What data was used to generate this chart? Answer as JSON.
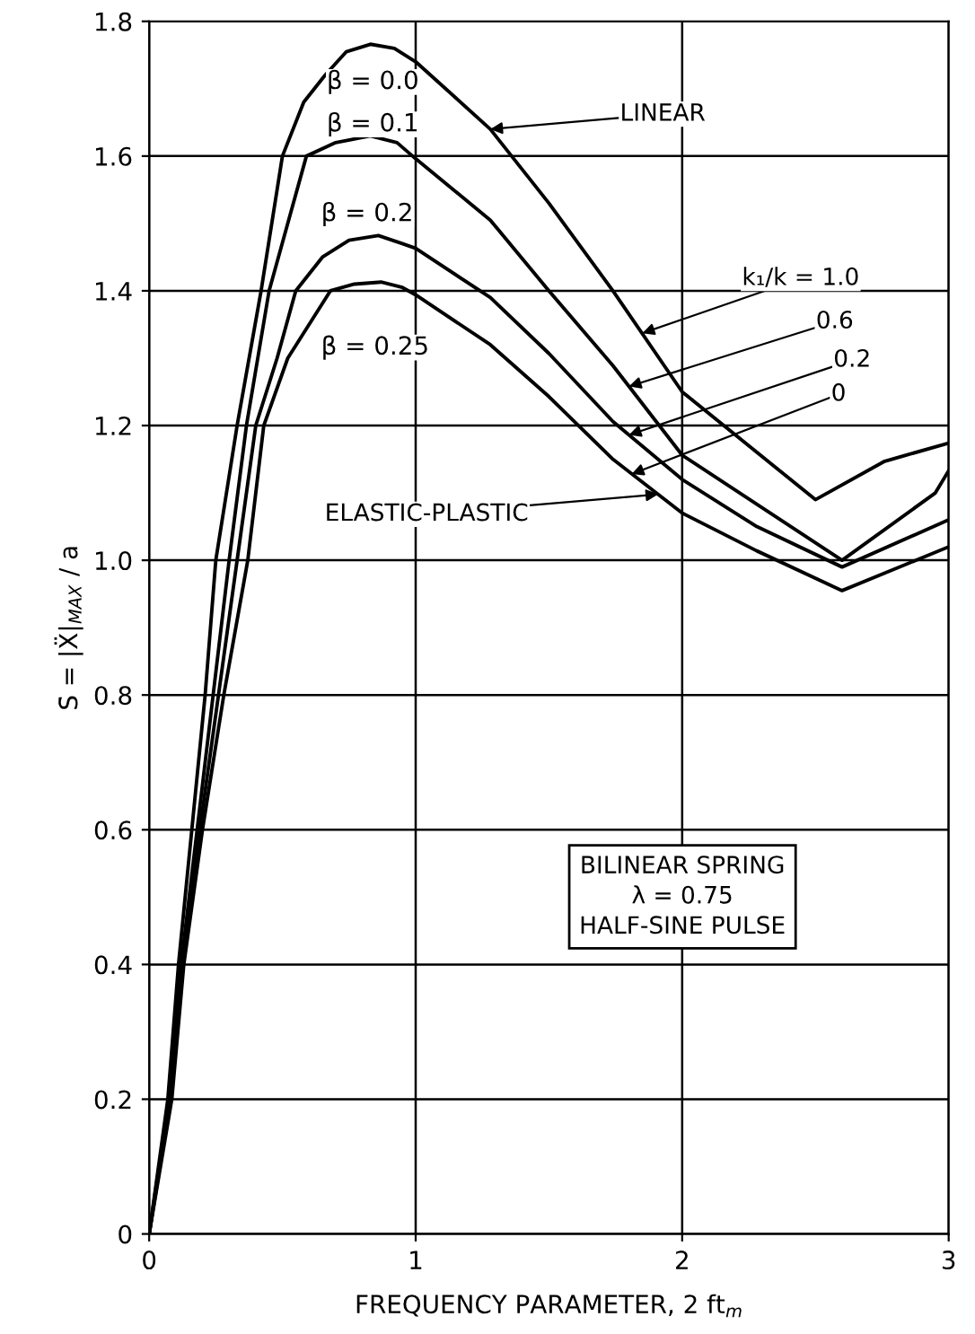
{
  "chart_data": {
    "type": "line",
    "xlabel": "FREQUENCY PARAMETER, 2 ft$_{m}$",
    "ylabel": "S̄ = |Ẍ|$_{MAX}$ / a",
    "xlim": [
      0,
      3
    ],
    "ylim": [
      0,
      1.8
    ],
    "xticks": [
      0,
      1,
      2,
      3
    ],
    "yticks": [
      0,
      0.2,
      0.4,
      0.6,
      0.8,
      {
        "value": 1.0,
        "label": "1.0"
      },
      1.2,
      1.4,
      1.6,
      1.8
    ],
    "grid": true,
    "marker": "none",
    "line_style": "solid",
    "series": [
      {
        "color": "#000000",
        "x": [
          0,
          0.07,
          0.11,
          0.16,
          0.21,
          0.25,
          0.33,
          0.42,
          0.5,
          0.58,
          0.66,
          0.74,
          0.83,
          0.92,
          1.0,
          1.28,
          1.5,
          1.74,
          2.0,
          2.5,
          2.76,
          3.0
        ],
        "values": [
          0,
          0.2,
          0.4,
          0.6,
          0.8,
          1.0,
          1.2,
          1.4,
          1.6,
          1.68,
          1.72,
          1.755,
          1.766,
          1.76,
          1.74,
          1.64,
          1.53,
          1.4,
          1.25,
          1.09,
          1.147,
          1.174
        ]
      },
      {
        "color": "#000000",
        "x": [
          0,
          0.075,
          0.12,
          0.18,
          0.24,
          0.3,
          0.365,
          0.45,
          0.59,
          0.7,
          0.83,
          0.93,
          1.0,
          1.28,
          1.5,
          1.74,
          2.0,
          2.6,
          2.95,
          3.0
        ],
        "values": [
          0,
          0.2,
          0.4,
          0.6,
          0.8,
          1.0,
          1.2,
          1.4,
          1.6,
          1.62,
          1.63,
          1.62,
          1.596,
          1.505,
          1.4,
          1.289,
          1.156,
          1.0,
          1.1,
          1.133
        ]
      },
      {
        "color": "#000000",
        "x": [
          0,
          0.08,
          0.12,
          0.19,
          0.26,
          0.33,
          0.4,
          0.48,
          0.55,
          0.65,
          0.75,
          0.86,
          0.95,
          1.0,
          1.28,
          1.5,
          1.74,
          2.0,
          2.28,
          2.6,
          3.0
        ],
        "values": [
          0,
          0.2,
          0.4,
          0.6,
          0.8,
          1.0,
          1.2,
          1.3,
          1.4,
          1.45,
          1.475,
          1.482,
          1.47,
          1.463,
          1.39,
          1.307,
          1.206,
          1.12,
          1.05,
          0.99,
          1.06
        ]
      },
      {
        "color": "#000000",
        "x": [
          0,
          0.085,
          0.13,
          0.2,
          0.28,
          0.37,
          0.43,
          0.52,
          0.68,
          0.77,
          0.87,
          0.95,
          1.0,
          1.28,
          1.5,
          1.74,
          2.0,
          2.28,
          2.6,
          3.0
        ],
        "values": [
          0,
          0.2,
          0.4,
          0.6,
          0.8,
          1.0,
          1.2,
          1.3,
          1.4,
          1.41,
          1.413,
          1.405,
          1.394,
          1.32,
          1.243,
          1.15,
          1.07,
          1.014,
          0.955,
          1.02
        ]
      }
    ],
    "annotations": [
      "β = 0.0",
      "β = 0.1",
      "β = 0.2",
      "β = 0.25",
      {
        "text": "LINEAR",
        "x": 1.28,
        "y": 1.64
      },
      {
        "text": "k₁/k = 1.0",
        "x": 1.85,
        "y": 1.337
      },
      {
        "text": "0.6",
        "x": 1.8,
        "y": 1.258
      },
      {
        "text": "0.2",
        "x": 1.8,
        "y": 1.186
      },
      {
        "text": "0",
        "x": 1.81,
        "y": 1.128
      },
      {
        "text": "ELASTIC-PLASTIC",
        "x": 1.91,
        "y": 1.098
      },
      "BILINEAR SPRING\nλ = 0.75\nHALF-SINE PULSE"
    ]
  }
}
